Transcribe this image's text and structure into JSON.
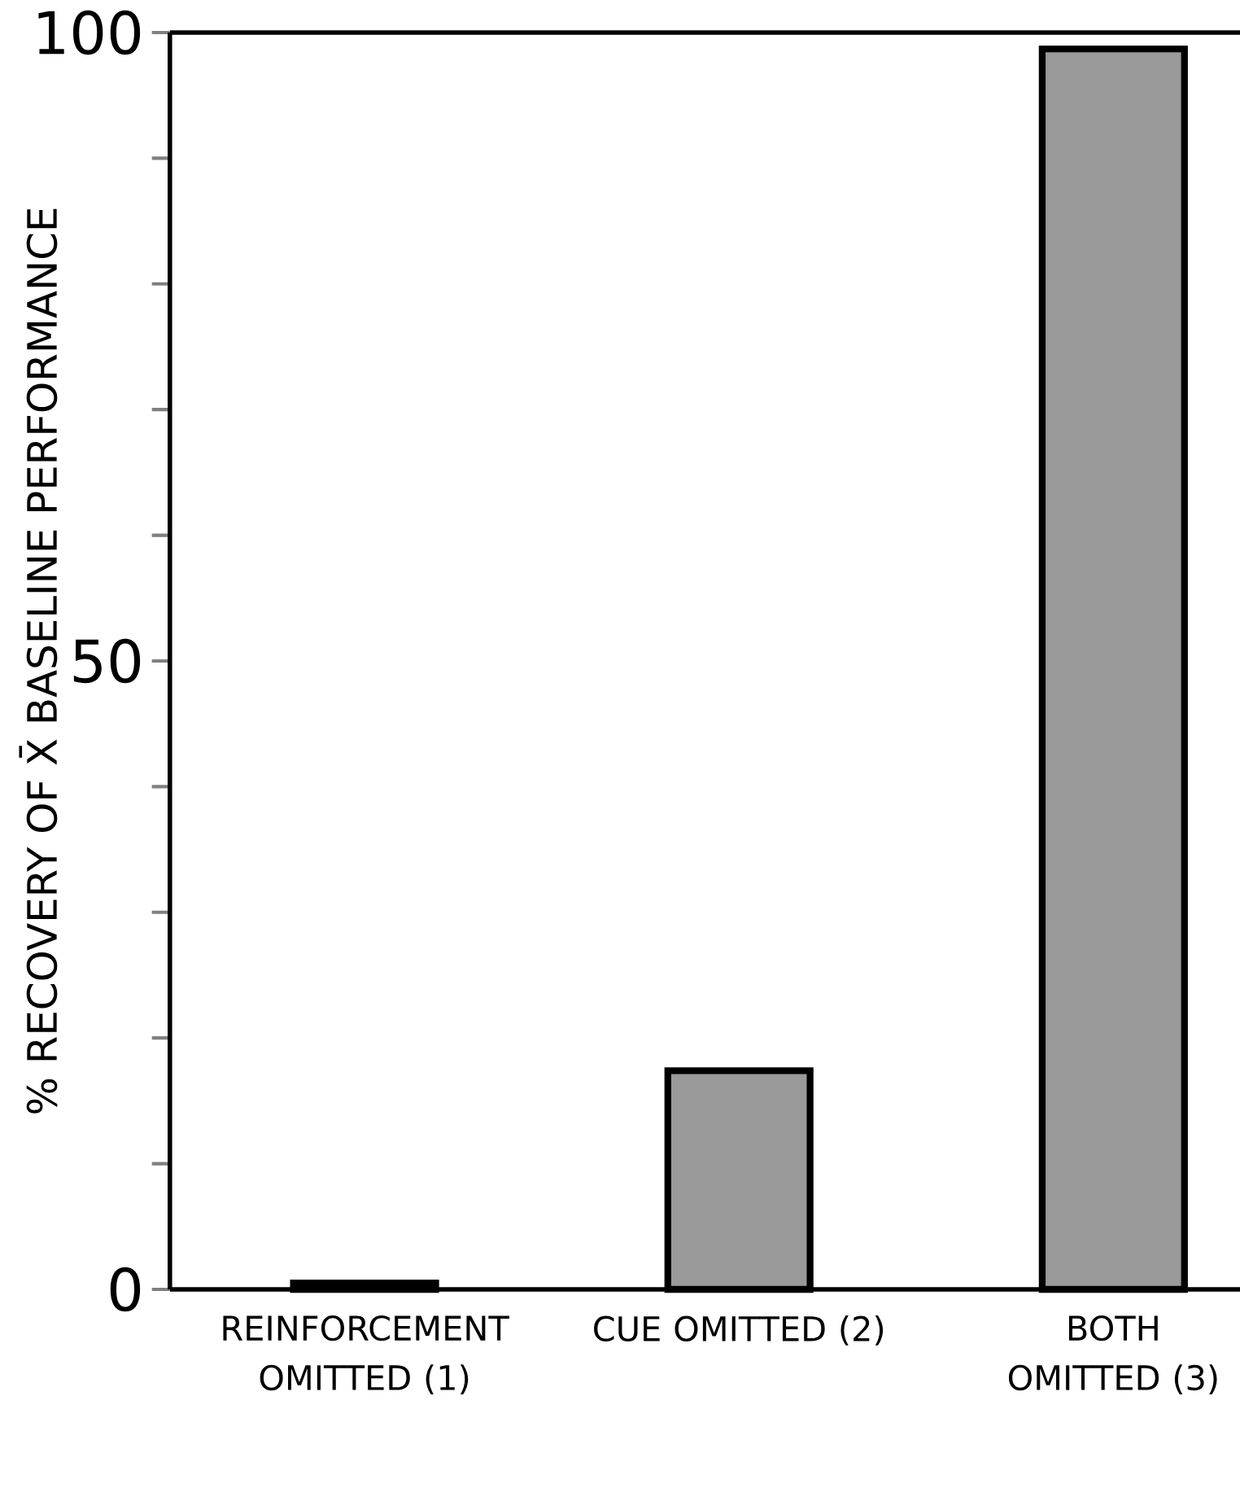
{
  "chart_data": {
    "type": "bar",
    "ylabel": "% RECOVERY OF X̄ BASELINE PERFORMANCE",
    "categories": [
      "REINFORCEMENT OMITTED (1)",
      "CUE OMITTED (2)",
      "BOTH OMITTED (3)"
    ],
    "values": [
      0.5,
      17.4,
      98.7
    ],
    "color": "#9a9a9a",
    "ylim": [
      0,
      100
    ],
    "yticks": [
      0,
      {
        "value": 10,
        "label": null
      },
      {
        "value": 20,
        "label": null
      },
      {
        "value": 30,
        "label": null
      },
      {
        "value": 40,
        "label": null
      },
      50,
      {
        "value": 60,
        "label": null
      },
      {
        "value": 70,
        "label": null
      },
      {
        "value": 80,
        "label": null
      },
      {
        "value": 90,
        "label": null
      },
      100
    ]
  }
}
